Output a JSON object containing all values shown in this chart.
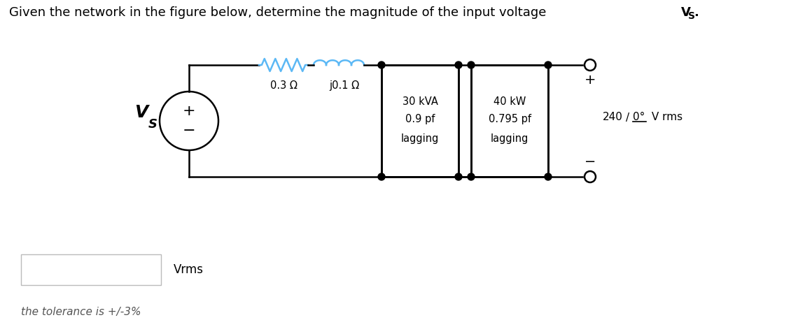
{
  "title_normal": "Given the network in the figure below, determine the magnitude of the input voltage ",
  "title_bold": "V",
  "title_sub": "S",
  "title_dot": ".",
  "resistor_label": "0.3 Ω",
  "inductor_label": "j0.1 Ω",
  "load1_line1": "30 kVA",
  "load1_line2": "0.9 pf",
  "load1_line3": "lagging",
  "load2_line1": "40 kW",
  "load2_line2": "0.795 pf",
  "load2_line3": "lagging",
  "voltage_mag": "240",
  "voltage_angle": "0",
  "voltage_unit": "° V rms",
  "source_label_bold": "V",
  "source_label_sub": "S",
  "input_box_label": "Vrms",
  "tolerance_text": "the tolerance is +/-3%",
  "bg_color": "#ffffff",
  "line_color": "#000000",
  "component_color": "#5bb8f5",
  "box_fill": "#ffffff",
  "box_edge": "#000000",
  "font_size_title": 13,
  "font_size_labels": 10.5,
  "font_size_source": 16
}
